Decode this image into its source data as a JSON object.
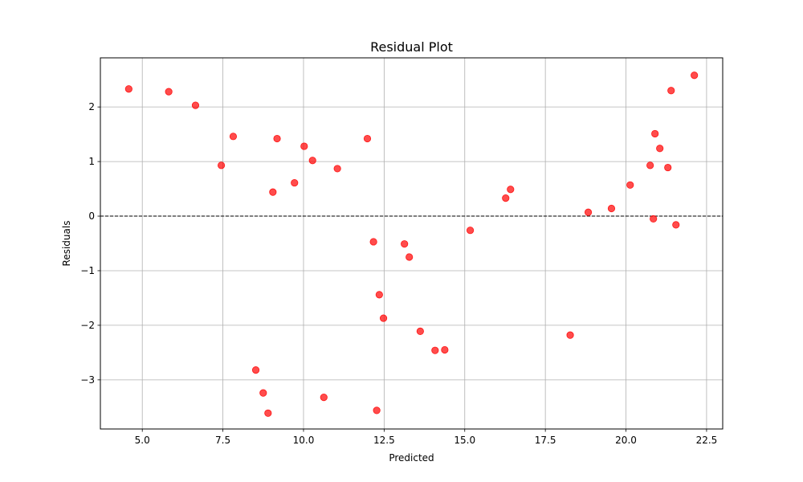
{
  "chart_data": {
    "type": "scatter",
    "title": "Residual Plot",
    "xlabel": "Predicted",
    "ylabel": "Residuals",
    "xlim": [
      3.7,
      23.0
    ],
    "ylim": [
      -3.9,
      2.9
    ],
    "grid": true,
    "xticks": [
      5.0,
      7.5,
      10.0,
      12.5,
      15.0,
      17.5,
      20.0,
      22.5
    ],
    "xtick_labels": [
      "5.0",
      "7.5",
      "10.0",
      "12.5",
      "15.0",
      "17.5",
      "20.0",
      "22.5"
    ],
    "yticks": [
      -3,
      -2,
      -1,
      0,
      1,
      2
    ],
    "ytick_labels": [
      "−3",
      "−2",
      "−1",
      "0",
      "1",
      "2"
    ],
    "reference_line": {
      "y": 0,
      "style": "dashed",
      "color": "#000000"
    },
    "marker_color": "#ff0000",
    "points": [
      {
        "x": 4.58,
        "y": 2.33
      },
      {
        "x": 5.82,
        "y": 2.28
      },
      {
        "x": 6.65,
        "y": 2.03
      },
      {
        "x": 7.45,
        "y": 0.93
      },
      {
        "x": 7.82,
        "y": 1.46
      },
      {
        "x": 8.52,
        "y": -2.82
      },
      {
        "x": 8.75,
        "y": -3.24
      },
      {
        "x": 8.9,
        "y": -3.61
      },
      {
        "x": 9.05,
        "y": 0.44
      },
      {
        "x": 9.18,
        "y": 1.42
      },
      {
        "x": 9.72,
        "y": 0.61
      },
      {
        "x": 10.02,
        "y": 1.28
      },
      {
        "x": 10.28,
        "y": 1.02
      },
      {
        "x": 10.63,
        "y": -3.32
      },
      {
        "x": 11.05,
        "y": 0.87
      },
      {
        "x": 11.98,
        "y": 1.42
      },
      {
        "x": 12.17,
        "y": -0.47
      },
      {
        "x": 12.27,
        "y": -3.56
      },
      {
        "x": 12.35,
        "y": -1.44
      },
      {
        "x": 12.48,
        "y": -1.87
      },
      {
        "x": 13.13,
        "y": -0.51
      },
      {
        "x": 13.28,
        "y": -0.75
      },
      {
        "x": 13.62,
        "y": -2.11
      },
      {
        "x": 14.08,
        "y": -2.46
      },
      {
        "x": 14.38,
        "y": -2.45
      },
      {
        "x": 15.17,
        "y": -0.26
      },
      {
        "x": 16.27,
        "y": 0.33
      },
      {
        "x": 16.42,
        "y": 0.49
      },
      {
        "x": 18.27,
        "y": -2.18
      },
      {
        "x": 18.83,
        "y": 0.07
      },
      {
        "x": 19.55,
        "y": 0.14
      },
      {
        "x": 20.13,
        "y": 0.57
      },
      {
        "x": 20.75,
        "y": 0.93
      },
      {
        "x": 20.85,
        "y": -0.05
      },
      {
        "x": 20.9,
        "y": 1.51
      },
      {
        "x": 21.05,
        "y": 1.24
      },
      {
        "x": 21.3,
        "y": 0.89
      },
      {
        "x": 21.4,
        "y": 2.3
      },
      {
        "x": 21.55,
        "y": -0.16
      },
      {
        "x": 22.12,
        "y": 2.58
      }
    ]
  }
}
